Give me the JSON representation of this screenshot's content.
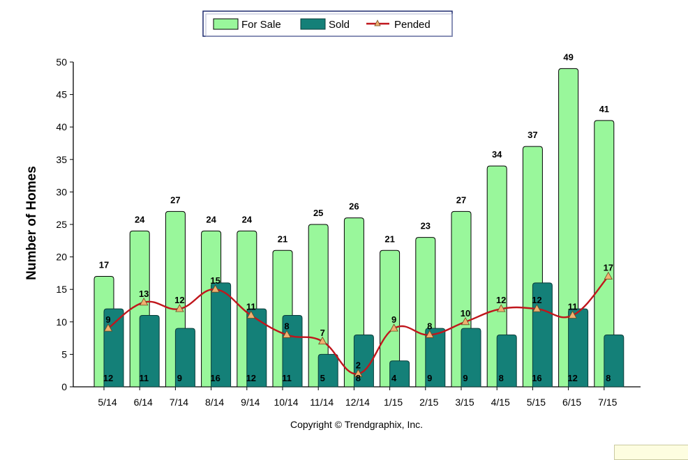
{
  "chart_data": {
    "type": "bar",
    "categories": [
      "5/14",
      "6/14",
      "7/14",
      "8/14",
      "9/14",
      "10/14",
      "11/14",
      "12/14",
      "1/15",
      "2/15",
      "3/15",
      "4/15",
      "5/15",
      "6/15",
      "7/15"
    ],
    "series": [
      {
        "name": "For Sale",
        "type": "bar",
        "color": "#99f79b",
        "values": [
          17,
          24,
          27,
          24,
          24,
          21,
          25,
          26,
          21,
          23,
          27,
          34,
          37,
          49,
          41
        ]
      },
      {
        "name": "Sold",
        "type": "bar",
        "color": "#148078",
        "values": [
          12,
          11,
          9,
          16,
          12,
          11,
          5,
          8,
          4,
          9,
          9,
          8,
          16,
          12,
          8
        ]
      },
      {
        "name": "Pended",
        "type": "line",
        "color": "#c0161c",
        "marker_color": "#f0b070",
        "values": [
          9,
          13,
          12,
          15,
          11,
          8,
          7,
          2,
          9,
          8,
          10,
          12,
          12,
          11,
          17
        ]
      }
    ],
    "ylabel": "Number of Homes",
    "xlabel": "",
    "ylim": [
      0,
      50
    ],
    "yticks": [
      0,
      5,
      10,
      15,
      20,
      25,
      30,
      35,
      40,
      45,
      50
    ],
    "grid": false,
    "legend_position": "top"
  },
  "copyright": "Copyright © Trendgraphix, Inc."
}
